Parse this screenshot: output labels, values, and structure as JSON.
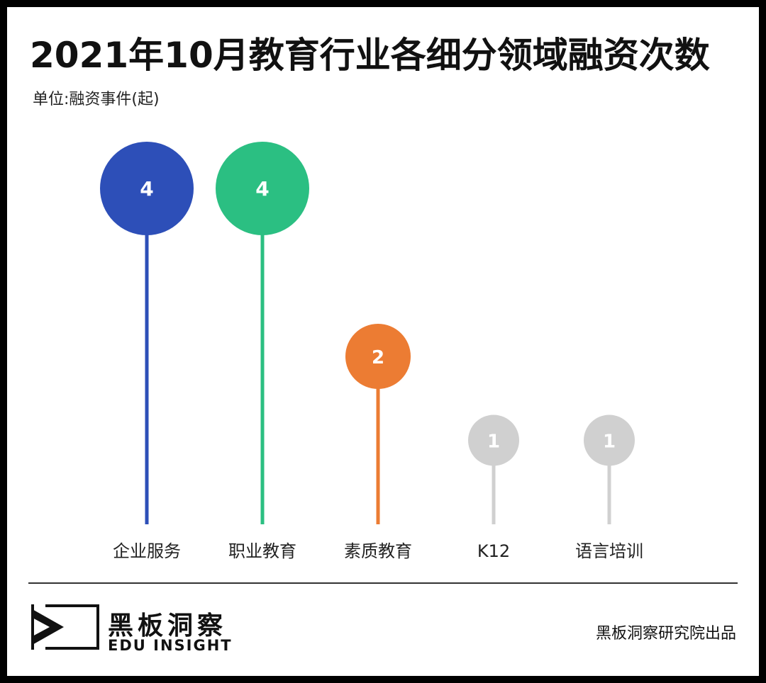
{
  "header": {
    "title": "2021年10月教育行业各细分领域融资次数",
    "unit": "单位:融资事件(起)"
  },
  "chart_data": {
    "type": "bar",
    "title": "2021年10月教育行业各细分领域融资次数",
    "ylabel": "单位:融资事件(起)",
    "categories": [
      "企业服务",
      "职业教育",
      "素质教育",
      "K12",
      "语言培训"
    ],
    "values": [
      4,
      4,
      2,
      1,
      1
    ],
    "colors": [
      "#2D4FB8",
      "#2BBF82",
      "#EC7C33",
      "#D0D0D0",
      "#D0D0D0"
    ],
    "ylim": [
      0,
      4
    ],
    "grid": false
  },
  "footer": {
    "brand_cn": "黑板洞察",
    "brand_en": "EDU INSIGHT",
    "credit": "黑板洞察研究院出品"
  }
}
